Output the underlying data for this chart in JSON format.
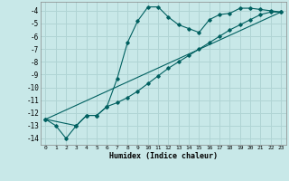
{
  "xlabel": "Humidex (Indice chaleur)",
  "ylabel": "",
  "bg_color": "#c8e8e8",
  "grid_color": "#b0d4d4",
  "line_color": "#006060",
  "xlim": [
    -0.5,
    23.5
  ],
  "ylim": [
    -14.5,
    -3.3
  ],
  "yticks": [
    -14,
    -13,
    -12,
    -11,
    -10,
    -9,
    -8,
    -7,
    -6,
    -5,
    -4
  ],
  "xticks": [
    0,
    1,
    2,
    3,
    4,
    5,
    6,
    7,
    8,
    9,
    10,
    11,
    12,
    13,
    14,
    15,
    16,
    17,
    18,
    19,
    20,
    21,
    22,
    23
  ],
  "series1_x": [
    0,
    1,
    2,
    3,
    4,
    5,
    6,
    7,
    8,
    9,
    10,
    11,
    12,
    13,
    14,
    15,
    16,
    17,
    18,
    19,
    20,
    21,
    22,
    23
  ],
  "series1_y": [
    -12.5,
    -13.0,
    -14.0,
    -13.0,
    -12.2,
    -12.2,
    -11.5,
    -9.3,
    -6.5,
    -4.8,
    -3.7,
    -3.7,
    -4.5,
    -5.1,
    -5.4,
    -5.7,
    -4.7,
    -4.3,
    -4.2,
    -3.8,
    -3.8,
    -3.9,
    -4.0,
    -4.1
  ],
  "series2_x": [
    0,
    3,
    4,
    5,
    6,
    7,
    8,
    9,
    10,
    11,
    12,
    13,
    14,
    15,
    16,
    17,
    18,
    19,
    20,
    21,
    22,
    23
  ],
  "series2_y": [
    -12.5,
    -13.0,
    -12.2,
    -12.2,
    -11.5,
    -11.2,
    -10.8,
    -10.3,
    -9.7,
    -9.1,
    -8.5,
    -8.0,
    -7.5,
    -7.0,
    -6.5,
    -6.0,
    -5.5,
    -5.1,
    -4.7,
    -4.3,
    -4.1,
    -4.1
  ],
  "series3_x": [
    0,
    23
  ],
  "series3_y": [
    -12.5,
    -4.1
  ]
}
